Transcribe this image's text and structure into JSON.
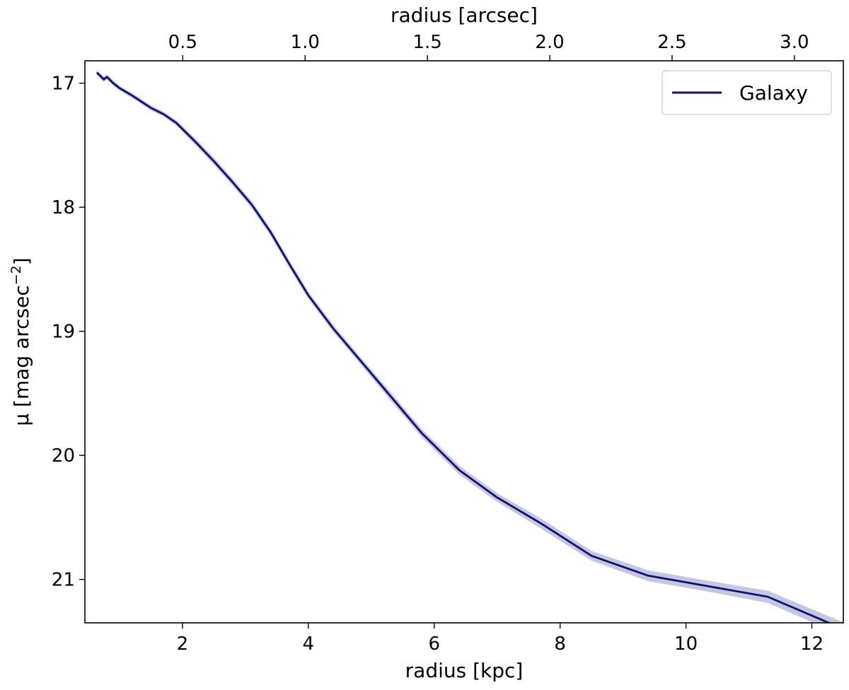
{
  "chart_data": {
    "type": "line",
    "xlabel": "radius [kpc]",
    "ylabel_main": "μ [mag arcsec",
    "ylabel_sup": "−2",
    "ylabel_close": "]",
    "x2label": "radius [arcsec]",
    "xlim": [
      0.45,
      12.5
    ],
    "ylim": [
      21.35,
      16.82
    ],
    "y_inverted": true,
    "x2lim": [
      0.1,
      3.2
    ],
    "xticks": [
      2,
      4,
      6,
      8,
      10,
      12
    ],
    "yticks": [
      17,
      18,
      19,
      20,
      21
    ],
    "x2ticks": [
      0.5,
      1.0,
      1.5,
      2.0,
      2.5,
      3.0
    ],
    "x2tick_labels": [
      "0.5",
      "1.0",
      "1.5",
      "2.0",
      "2.5",
      "3.0"
    ],
    "grid": false,
    "legend_position": "top-right",
    "series": [
      {
        "name": "Galaxy",
        "color": "#0c1270",
        "band_color": "#c5c7e0",
        "x": [
          0.65,
          0.75,
          0.8,
          0.9,
          1.0,
          1.2,
          1.5,
          1.7,
          1.9,
          2.2,
          2.5,
          2.8,
          3.1,
          3.4,
          3.7,
          4.0,
          4.4,
          4.8,
          5.3,
          5.8,
          6.4,
          7.0,
          7.7,
          8.5,
          9.4,
          10.3,
          11.3,
          12.5
        ],
        "y": [
          16.92,
          16.97,
          16.95,
          17.0,
          17.04,
          17.1,
          17.2,
          17.25,
          17.32,
          17.47,
          17.63,
          17.8,
          17.98,
          18.2,
          18.46,
          18.71,
          18.98,
          19.22,
          19.52,
          19.82,
          20.12,
          20.34,
          20.55,
          20.81,
          20.97,
          21.05,
          21.14,
          21.4
        ],
        "err": [
          0.01,
          0.01,
          0.01,
          0.01,
          0.01,
          0.01,
          0.01,
          0.01,
          0.01,
          0.015,
          0.015,
          0.015,
          0.015,
          0.015,
          0.015,
          0.015,
          0.015,
          0.015,
          0.02,
          0.02,
          0.025,
          0.025,
          0.03,
          0.03,
          0.035,
          0.035,
          0.04,
          0.045
        ]
      }
    ]
  }
}
